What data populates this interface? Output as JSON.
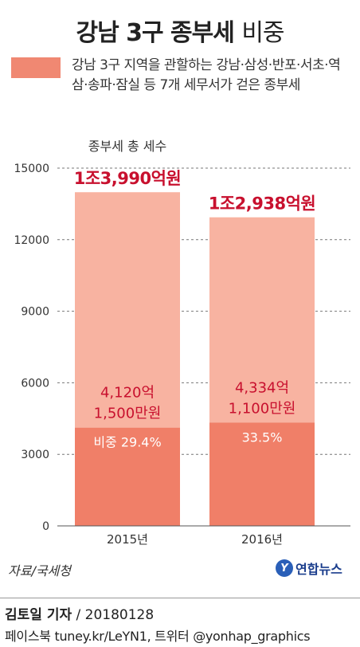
{
  "title": {
    "bold": "강남 3구 종부세",
    "light": "비중"
  },
  "legend": {
    "color": "#f08872",
    "text": "강남 3구 지역을 관할하는 강남·삼성·반포·서초·역삼·송파·잠실 등 7개 세무서가 걷은 종부세"
  },
  "colors": {
    "total": "#f8b3a1",
    "share": "#f07f68",
    "value_label": "#c8102e"
  },
  "chart_data": {
    "type": "bar",
    "stacked": true,
    "categories": [
      "2015년",
      "2016년"
    ],
    "unit": "억원",
    "yticks": [
      0,
      3000,
      6000,
      9000,
      12000,
      15000
    ],
    "ylim": [
      0,
      15000
    ],
    "total_label": "종부세 총 세수",
    "series": [
      {
        "values": [
          4120.15,
          4334.11
        ]
      },
      {
        "values": [
          9869.85,
          8603.89
        ]
      }
    ],
    "totals": [
      13990,
      12938
    ],
    "total_labels": [
      "1조3,990억원",
      "1조2,938억원"
    ],
    "share_labels": [
      [
        "4,120억",
        "1,500만원"
      ],
      [
        "4,334억",
        "1,100만원"
      ]
    ],
    "percent_labels": [
      "비중 29.4%",
      "33.5%"
    ]
  },
  "footer": {
    "source": "자료/국세청",
    "logo_mark": "Y",
    "logo_text": "연합뉴스",
    "reporter_name": "김토일 기자",
    "reporter_date": " / 20180128",
    "social": "페이스북 tuney.kr/LeYN1, 트위터 @yonhap_graphics"
  }
}
